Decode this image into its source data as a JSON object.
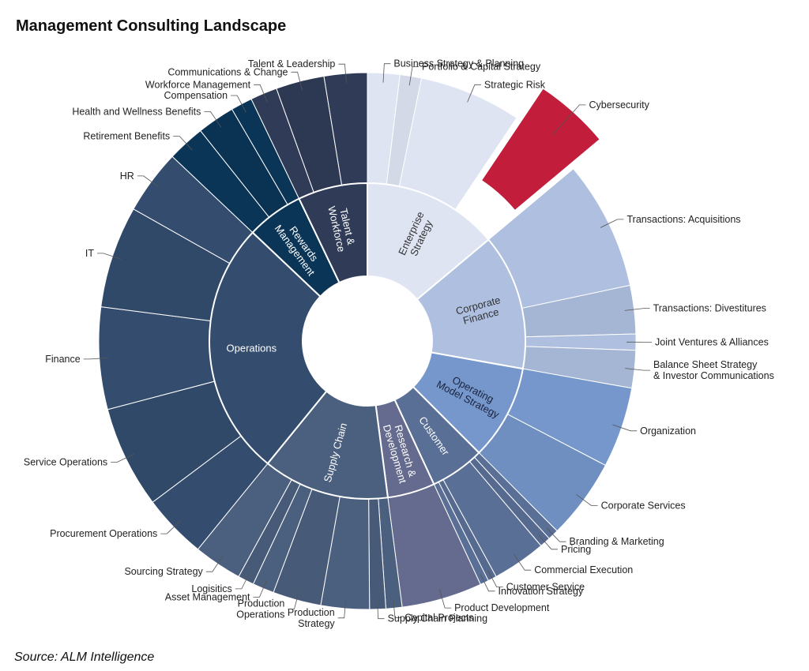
{
  "title": "Management Consulting Landscape",
  "source": "Source: ALM Intelligence",
  "chart_data": {
    "type": "sunburst",
    "categories": [
      {
        "name": "Enterprise Strategy",
        "lines": [
          "Enterprise",
          "Strategy"
        ],
        "color": "#dfe4f3",
        "text_color": "#333333",
        "children": [
          {
            "name": "Business Strategy & Planning",
            "value": 3
          },
          {
            "name": "Portfolio & Capital Strategy",
            "value": 2
          },
          {
            "name": "Strategic Risk",
            "value": 9.5
          },
          {
            "name": "Cybersecurity",
            "value": 7,
            "highlight": true,
            "color": "#c21e3c"
          }
        ]
      },
      {
        "name": "Corporate Finance",
        "lines": [
          "Corporate",
          "Finance"
        ],
        "color": "#aebfdf",
        "text_color": "#333333",
        "children": [
          {
            "name": "Transactions: Acquisitions",
            "value": 12
          },
          {
            "name": "Transactions: Divestitures",
            "value": 4.5
          },
          {
            "name": "Joint Ventures & Alliances",
            "value": 1.5
          },
          {
            "name": "Balance Sheet Strategy & Investor Communications",
            "value": 3.5
          }
        ]
      },
      {
        "name": "Operating Model Strategy",
        "lines": [
          "Operating",
          "Model Strategy"
        ],
        "color": "#7697cb",
        "text_color": "#1a2440",
        "children": [
          {
            "name": "Organization",
            "value": 7.5
          },
          {
            "name": "Corporate Services",
            "value": 7.5
          }
        ]
      },
      {
        "name": "Customer",
        "lines": [
          "Customer"
        ],
        "color": "#5a6f96",
        "text_color": "#ffffff",
        "children": [
          {
            "name": "Branding & Marketing",
            "value": 1
          },
          {
            "name": "Pricing",
            "value": 1
          },
          {
            "name": "Commercial Execution",
            "value": 5
          },
          {
            "name": "Customer Service",
            "value": 0.8
          },
          {
            "name": "Innovation Strategy",
            "value": 0.8
          }
        ]
      },
      {
        "name": "Research & Development",
        "lines": [
          "Research &",
          "Development"
        ],
        "color": "#656b8e",
        "text_color": "#ffffff",
        "children": [
          {
            "name": "Product Development",
            "value": 7.5
          }
        ]
      },
      {
        "name": "Supply Chain",
        "lines": [
          "Supply Chain"
        ],
        "color": "#4b5f7e",
        "text_color": "#ffffff",
        "children": [
          {
            "name": "Capital Projects",
            "value": 1.5
          },
          {
            "name": "Supply Chain Planning",
            "value": 1.5
          },
          {
            "name": "Production Strategy",
            "value": 4.5
          },
          {
            "name": "Production Operations",
            "value": 4.5
          },
          {
            "name": "Asset Management",
            "value": 2
          },
          {
            "name": "Logisitics",
            "value": 1.5
          },
          {
            "name": "Sourcing Strategy",
            "value": 4.5
          }
        ]
      },
      {
        "name": "Operations",
        "lines": [
          "Operations"
        ],
        "color": "#344d6f",
        "text_color": "#ffffff",
        "children": [
          {
            "name": "Procurement Operations",
            "value": 6
          },
          {
            "name": "Service Operations",
            "value": 9.5
          },
          {
            "name": "Finance",
            "value": 9.5
          },
          {
            "name": "IT",
            "value": 9.5
          },
          {
            "name": "HR",
            "value": 6
          }
        ]
      },
      {
        "name": "Rewards Management",
        "lines": [
          "Rewards",
          "Management"
        ],
        "color": "#0b3557",
        "text_color": "#ffffff",
        "children": [
          {
            "name": "Retirement Benefits",
            "value": 3.5
          },
          {
            "name": "Health and Wellness Benefits",
            "value": 3.5
          },
          {
            "name": "Compensation",
            "value": 2
          }
        ]
      },
      {
        "name": "Talent & Workforce",
        "lines": [
          "Talent &",
          "Workforce"
        ],
        "color": "#2f3b57",
        "text_color": "#ffffff",
        "children": [
          {
            "name": "Workforce Management",
            "value": 2.5
          },
          {
            "name": "Communications & Change",
            "value": 4.5
          },
          {
            "name": "Talent & Leadership",
            "value": 4
          }
        ]
      }
    ],
    "outer_labels": [
      {
        "lines": [
          "Business Strategy & Planning"
        ]
      },
      {
        "lines": [
          "Portfolio & Capital Strategy"
        ]
      },
      {
        "lines": [
          "Strategic Risk"
        ]
      },
      {
        "lines": [
          "Cybersecurity"
        ]
      },
      {
        "lines": [
          "Transactions: Acquisitions"
        ]
      },
      {
        "lines": [
          "Transactions: Divestitures"
        ]
      },
      {
        "lines": [
          "Joint Ventures & Alliances"
        ]
      },
      {
        "lines": [
          "Balance Sheet Strategy",
          "& Investor Communications"
        ]
      },
      {
        "lines": [
          "Organization"
        ]
      },
      {
        "lines": [
          "Corporate Services"
        ]
      },
      {
        "lines": [
          "Branding & Marketing"
        ]
      },
      {
        "lines": [
          "Pricing"
        ]
      },
      {
        "lines": [
          "Commercial Execution"
        ]
      },
      {
        "lines": [
          "Customer Service"
        ]
      },
      {
        "lines": [
          "Innovation Strategy"
        ]
      },
      {
        "lines": [
          "Product Development"
        ]
      },
      {
        "lines": [
          "Capital Projects"
        ]
      },
      {
        "lines": [
          "Supply Chain Planning"
        ]
      },
      {
        "lines": [
          "Production",
          "Strategy"
        ]
      },
      {
        "lines": [
          "Production",
          "Operations"
        ]
      },
      {
        "lines": [
          "Asset Management"
        ]
      },
      {
        "lines": [
          "Logisitics"
        ]
      },
      {
        "lines": [
          "Sourcing Strategy"
        ]
      },
      {
        "lines": [
          "Procurement Operations"
        ]
      },
      {
        "lines": [
          "Service Operations"
        ]
      },
      {
        "lines": [
          "Finance"
        ]
      },
      {
        "lines": [
          "IT"
        ]
      },
      {
        "lines": [
          "HR"
        ]
      },
      {
        "lines": [
          "Retirement Benefits"
        ]
      },
      {
        "lines": [
          "Health and Wellness Benefits"
        ]
      },
      {
        "lines": [
          "Compensation"
        ]
      },
      {
        "lines": [
          "Workforce Management"
        ]
      },
      {
        "lines": [
          "Communications & Change"
        ]
      },
      {
        "lines": [
          "Talent & Leadership"
        ]
      }
    ]
  }
}
